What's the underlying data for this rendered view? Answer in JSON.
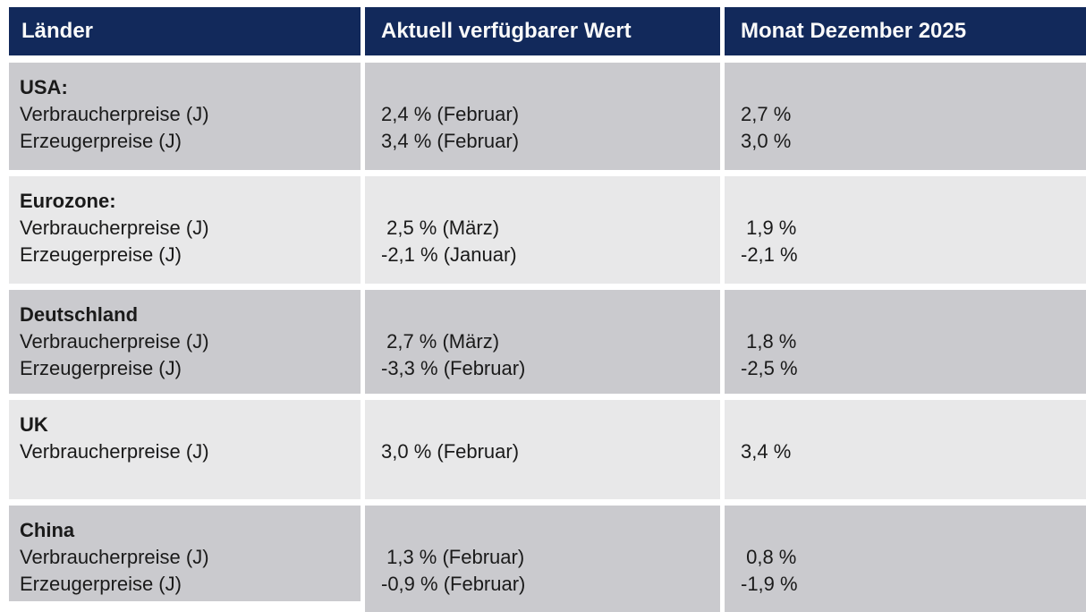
{
  "table": {
    "headers": {
      "country": "Länder",
      "current": "Aktuell verfügbarer Wert",
      "december": "Monat Dezember 2025"
    },
    "rows": [
      {
        "country": "USA:",
        "labels": [
          "Verbraucherpreise (J)",
          "Erzeugerpreise (J)"
        ],
        "current": [
          "2,4 % (Februar)",
          "3,4 % (Februar)"
        ],
        "december": [
          "2,7 %",
          "3,0 %"
        ]
      },
      {
        "country": "Eurozone:",
        "labels": [
          "Verbraucherpreise (J)",
          "Erzeugerpreise (J)"
        ],
        "current": [
          " 2,5 % (März)",
          "-2,1 % (Januar)"
        ],
        "december": [
          " 1,9 %",
          "-2,1 %"
        ]
      },
      {
        "country": "Deutschland",
        "labels": [
          "Verbraucherpreise (J)",
          "Erzeugerpreise (J)"
        ],
        "current": [
          " 2,7 % (März)",
          "-3,3 % (Februar)"
        ],
        "december": [
          " 1,8 %",
          "-2,5 %"
        ]
      },
      {
        "country": "UK",
        "labels": [
          "Verbraucherpreise (J)"
        ],
        "current": [
          "3,0 % (Februar)"
        ],
        "december": [
          "3,4 %"
        ]
      },
      {
        "country": "China",
        "labels": [
          "Verbraucherpreise (J)",
          "Erzeugerpreise (J)"
        ],
        "current": [
          " 1,3 % (Februar)",
          "-0,9 % (Februar)"
        ],
        "december": [
          " 0,8 %",
          "-1,9 %"
        ]
      }
    ],
    "colors": {
      "header_bg": "#12295b",
      "header_text": "#fafafa",
      "row_dark_bg": "#cacace",
      "row_light_bg": "#e8e8e9",
      "text": "#1a1a1a"
    }
  }
}
